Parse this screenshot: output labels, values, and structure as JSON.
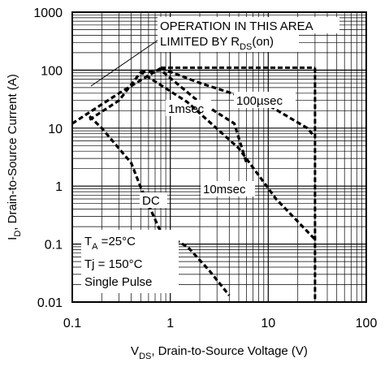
{
  "chart_data": {
    "type": "line",
    "title": "",
    "xscale": "log",
    "yscale": "log",
    "xlim": [
      0.1,
      100
    ],
    "ylim": [
      0.01,
      1000
    ],
    "grid": true,
    "x_ticks": [
      "0.1",
      "1",
      "10",
      "100"
    ],
    "y_ticks": [
      "0.01",
      "0.1",
      "1",
      "10",
      "100",
      "1000"
    ],
    "xlabel": {
      "main": "V",
      "sub": "DS",
      "rest": ", Drain-to-Source Voltage (V)"
    },
    "ylabel": {
      "main": "I",
      "sub": "D",
      "rest": ", Drain-to-Source Current (A)"
    },
    "annotation": {
      "line1": "OPERATION IN THIS AREA",
      "line2": "LIMITED BY R",
      "line2_sub": "DS",
      "line2_end": "(on)"
    },
    "conditions": {
      "ta_main": "T",
      "ta_sub": "A",
      "ta_rest": " =25°C",
      "tj": "Tj = 150°C",
      "pulse": "Single Pulse"
    },
    "limits": {
      "current_limit_A": 110,
      "voltage_limit_V": 30
    },
    "series": [
      {
        "name": "RDS(on) limit",
        "x": [
          0.1,
          0.3,
          0.8
        ],
        "y": [
          12,
          40,
          108
        ]
      },
      {
        "name": "100µsec",
        "label": "100µsec",
        "x": [
          0.8,
          2.0,
          10.0,
          25.0,
          30.0
        ],
        "y": [
          108,
          60,
          25,
          10,
          7
        ]
      },
      {
        "name": "1msec",
        "label": "1msec",
        "x": [
          0.5,
          0.8,
          1.8,
          4.5,
          6.0
        ],
        "y": [
          92,
          100,
          32,
          12,
          2.5
        ]
      },
      {
        "name": "10msec",
        "label": "10msec",
        "x": [
          0.15,
          0.3,
          0.5,
          1.5,
          5.0,
          12.0,
          30.0
        ],
        "y": [
          14,
          30,
          92,
          28,
          4.5,
          0.6,
          0.12
        ]
      },
      {
        "name": "DC",
        "label": "DC",
        "x": [
          0.15,
          0.2,
          0.4,
          0.5,
          0.8,
          1.5,
          2.5,
          4.0
        ],
        "y": [
          16,
          10,
          2.5,
          0.95,
          0.16,
          0.09,
          0.035,
          0.013
        ]
      }
    ]
  }
}
